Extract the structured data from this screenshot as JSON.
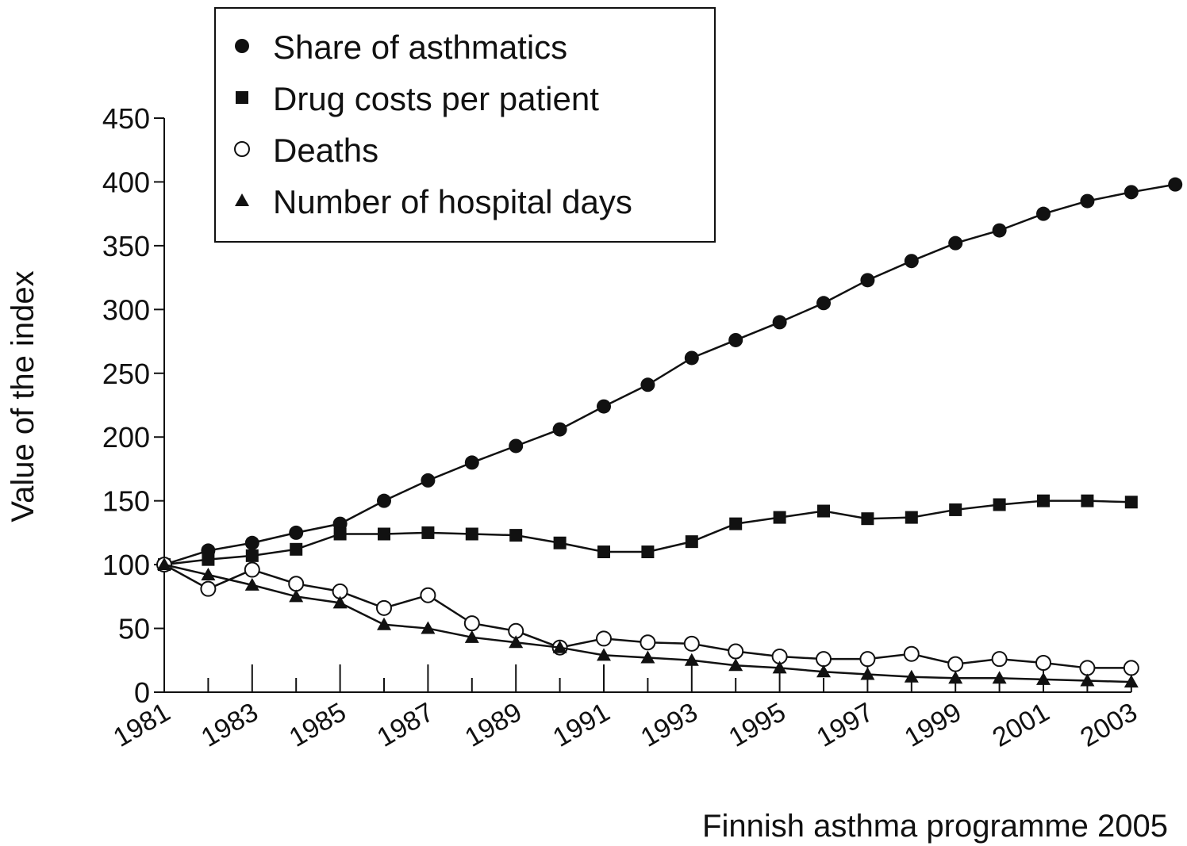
{
  "chart_data": {
    "type": "line",
    "title": "",
    "xlabel": "",
    "ylabel": "Value of the index",
    "caption": "Finnish asthma programme 2005",
    "xlim": [
      1981,
      2004
    ],
    "ylim": [
      0,
      450
    ],
    "yticks": [
      0,
      50,
      100,
      150,
      200,
      250,
      300,
      350,
      400,
      450
    ],
    "xtick_labels": [
      "1981",
      "1983",
      "1985",
      "1987",
      "1989",
      "1991",
      "1993",
      "1995",
      "1997",
      "1999",
      "2001",
      "2003"
    ],
    "grid": false,
    "legend_position": "top-left",
    "series": [
      {
        "name": "Share of asthmatics",
        "marker": "filled-circle",
        "color": "#111111",
        "x": [
          1981,
          1982,
          1983,
          1984,
          1985,
          1986,
          1987,
          1988,
          1989,
          1990,
          1991,
          1992,
          1993,
          1994,
          1995,
          1996,
          1997,
          1998,
          1999,
          2000,
          2001,
          2002,
          2003,
          2004
        ],
        "values": [
          100,
          111,
          117,
          125,
          132,
          150,
          166,
          180,
          193,
          206,
          224,
          241,
          262,
          276,
          290,
          305,
          323,
          338,
          352,
          362,
          375,
          385,
          392,
          398
        ]
      },
      {
        "name": "Drug costs per patient",
        "marker": "filled-square",
        "color": "#111111",
        "x": [
          1981,
          1982,
          1983,
          1984,
          1985,
          1986,
          1987,
          1988,
          1989,
          1990,
          1991,
          1992,
          1993,
          1994,
          1995,
          1996,
          1997,
          1998,
          1999,
          2000,
          2001,
          2002,
          2003
        ],
        "values": [
          100,
          104,
          107,
          112,
          124,
          124,
          125,
          124,
          123,
          117,
          110,
          110,
          118,
          132,
          137,
          142,
          136,
          137,
          143,
          147,
          150,
          150,
          149
        ]
      },
      {
        "name": "Deaths",
        "marker": "open-circle",
        "color": "#111111",
        "x": [
          1981,
          1982,
          1983,
          1984,
          1985,
          1986,
          1987,
          1988,
          1989,
          1990,
          1991,
          1992,
          1993,
          1994,
          1995,
          1996,
          1997,
          1998,
          1999,
          2000,
          2001,
          2002,
          2003
        ],
        "values": [
          100,
          81,
          96,
          85,
          79,
          66,
          76,
          54,
          48,
          35,
          42,
          39,
          38,
          32,
          28,
          26,
          26,
          30,
          22,
          26,
          23,
          19,
          19
        ]
      },
      {
        "name": "Number of hospital days",
        "marker": "filled-triangle",
        "color": "#111111",
        "x": [
          1981,
          1982,
          1983,
          1984,
          1985,
          1986,
          1987,
          1988,
          1989,
          1990,
          1991,
          1992,
          1993,
          1994,
          1995,
          1996,
          1997,
          1998,
          1999,
          2000,
          2001,
          2002,
          2003
        ],
        "values": [
          100,
          92,
          84,
          75,
          70,
          53,
          50,
          43,
          39,
          35,
          29,
          27,
          25,
          21,
          19,
          16,
          14,
          12,
          11,
          11,
          10,
          9,
          8
        ]
      }
    ]
  }
}
